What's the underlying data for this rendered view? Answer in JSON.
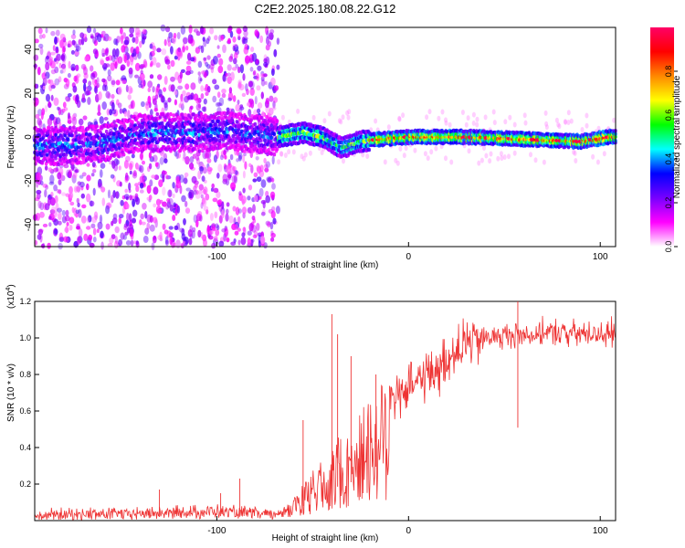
{
  "figure": {
    "title": "C2E2.2025.180.08.22.G12"
  },
  "chart_data": [
    {
      "type": "heatmap",
      "xlabel": "Height of straight line (km)",
      "ylabel": "Frequency (Hz)",
      "xlim": [
        -195,
        108
      ],
      "ylim": [
        -50,
        50
      ],
      "xticks": [
        -100,
        0,
        100
      ],
      "yticks": [
        -40,
        -20,
        0,
        20,
        40
      ],
      "colorbar": {
        "label": "Normalized spectral amplitude",
        "range": [
          0,
          1
        ],
        "ticks": [
          "0.0",
          "0.2",
          "0.4",
          "0.6",
          "0.8"
        ],
        "colormap": [
          "#ffffff",
          "#ff00ff",
          "#7700ff",
          "#0000ff",
          "#00ffff",
          "#00ff00",
          "#ffff00",
          "#ff8800",
          "#ff0000",
          "#ff0066"
        ]
      },
      "ridge": {
        "description_points": [
          {
            "x": -180,
            "y": -4
          },
          {
            "x": -160,
            "y": -3
          },
          {
            "x": -140,
            "y": 2
          },
          {
            "x": -110,
            "y": 2
          },
          {
            "x": -95,
            "y": 3
          },
          {
            "x": -68,
            "y": 0
          },
          {
            "x": -55,
            "y": 2
          },
          {
            "x": -45,
            "y": 0
          },
          {
            "x": -35,
            "y": -5
          },
          {
            "x": -25,
            "y": -2
          },
          {
            "x": -15,
            "y": -1
          },
          {
            "x": 0,
            "y": 0
          },
          {
            "x": 30,
            "y": 0
          },
          {
            "x": 60,
            "y": -1
          },
          {
            "x": 90,
            "y": -2
          },
          {
            "x": 105,
            "y": 0
          }
        ],
        "noisy_below_x": -68
      }
    },
    {
      "type": "line",
      "xlabel": "Height of straight line (km)",
      "ylabel": "SNR (10 * v/v)",
      "yscale_label": "(x10",
      "yscale_exp": "4",
      "yscale_close": ")",
      "xlim": [
        -195,
        108
      ],
      "ylim": [
        0,
        1.2
      ],
      "xticks": [
        -100,
        0,
        100
      ],
      "yticks": [
        0.2,
        0.4,
        0.6,
        0.8,
        1.0,
        1.2
      ],
      "ytick_labels": [
        "0.2",
        "0.4",
        "0.6",
        "0.8",
        "1.0",
        "1.2"
      ],
      "series": [
        {
          "color": "#ee3333",
          "envelope": [
            {
              "x": -195,
              "y": 0.03
            },
            {
              "x": -130,
              "y": 0.04
            },
            {
              "x": -100,
              "y": 0.05
            },
            {
              "x": -70,
              "y": 0.03
            },
            {
              "x": -60,
              "y": 0.1
            },
            {
              "x": -50,
              "y": 0.22
            },
            {
              "x": -40,
              "y": 0.35
            },
            {
              "x": -30,
              "y": 0.42
            },
            {
              "x": -20,
              "y": 0.55
            },
            {
              "x": -10,
              "y": 0.68
            },
            {
              "x": 0,
              "y": 0.72
            },
            {
              "x": 10,
              "y": 0.8
            },
            {
              "x": 20,
              "y": 0.88
            },
            {
              "x": 30,
              "y": 0.97
            },
            {
              "x": 40,
              "y": 1.0
            },
            {
              "x": 60,
              "y": 1.02
            },
            {
              "x": 80,
              "y": 1.03
            },
            {
              "x": 108,
              "y": 1.02
            }
          ],
          "spikes": [
            {
              "x": -130,
              "y": 0.17
            },
            {
              "x": -98,
              "y": 0.15
            },
            {
              "x": -88,
              "y": 0.23
            },
            {
              "x": -55,
              "y": 0.55
            },
            {
              "x": -40,
              "y": 1.13
            },
            {
              "x": -37,
              "y": 1.02
            },
            {
              "x": -30,
              "y": 0.9
            },
            {
              "x": -17,
              "y": 0.8
            },
            {
              "x": 57,
              "y": 1.2
            }
          ]
        }
      ]
    }
  ]
}
